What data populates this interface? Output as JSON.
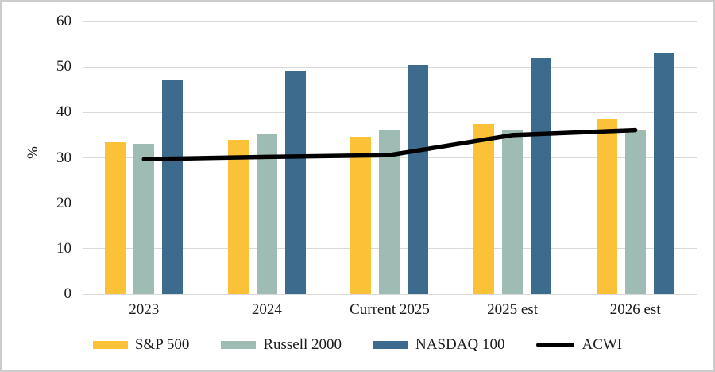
{
  "frame": {
    "background": "#ffffff",
    "border_color": "#cccccc"
  },
  "chart_data": {
    "type": "bar",
    "title": "",
    "xlabel": "",
    "ylabel": "%",
    "categories": [
      "2023",
      "2024",
      "Current 2025",
      "2025 est",
      "2026 est"
    ],
    "series": [
      {
        "name": "S&P 500",
        "kind": "bar",
        "color": "#FBC137",
        "values": [
          33.5,
          34.0,
          34.6,
          37.4,
          38.4
        ]
      },
      {
        "name": "Russell 2000",
        "kind": "bar",
        "color": "#9EBCB4",
        "values": [
          33.0,
          35.3,
          36.2,
          36.1,
          36.2
        ]
      },
      {
        "name": "NASDAQ 100",
        "kind": "bar",
        "color": "#3D6B8E",
        "values": [
          47.0,
          49.2,
          50.4,
          51.9,
          53.0
        ]
      },
      {
        "name": "ACWI",
        "kind": "line",
        "color": "#000000",
        "values": [
          29.7,
          30.2,
          30.6,
          35.0,
          36.1
        ]
      }
    ],
    "ylim": [
      0,
      60
    ],
    "ytick_interval": 10,
    "yticks": [
      0,
      10,
      20,
      30,
      40,
      50,
      60
    ],
    "grid": true,
    "gridline_color": "#d9d9d9",
    "legend_position": "bottom"
  }
}
